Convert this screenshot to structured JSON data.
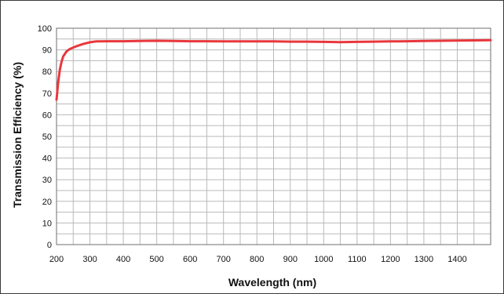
{
  "chart_data": {
    "type": "line",
    "title": "",
    "xlabel": "Wavelength (nm)",
    "ylabel": "Transmission Efficiency (%)",
    "xlim": [
      200,
      1500
    ],
    "ylim": [
      0,
      100
    ],
    "x_ticks": [
      200,
      300,
      400,
      500,
      600,
      700,
      800,
      900,
      1000,
      1100,
      1200,
      1300,
      1400
    ],
    "y_ticks": [
      0,
      10,
      20,
      30,
      40,
      50,
      60,
      70,
      80,
      90,
      100
    ],
    "x_grid_step": 50,
    "y_grid_step": 5,
    "grid": true,
    "legend": "none",
    "series": [
      {
        "color": "#e8383d",
        "points": [
          [
            200,
            67
          ],
          [
            205,
            75
          ],
          [
            210,
            81
          ],
          [
            215,
            84.5
          ],
          [
            220,
            87
          ],
          [
            230,
            89.3
          ],
          [
            240,
            90.4
          ],
          [
            260,
            91.7
          ],
          [
            280,
            92.7
          ],
          [
            300,
            93.5
          ],
          [
            320,
            93.9
          ],
          [
            350,
            94.0
          ],
          [
            400,
            94.0
          ],
          [
            450,
            94.1
          ],
          [
            500,
            94.2
          ],
          [
            550,
            94.1
          ],
          [
            600,
            94.0
          ],
          [
            650,
            94.0
          ],
          [
            700,
            93.9
          ],
          [
            750,
            93.9
          ],
          [
            800,
            93.9
          ],
          [
            850,
            93.9
          ],
          [
            900,
            93.8
          ],
          [
            950,
            93.8
          ],
          [
            1000,
            93.7
          ],
          [
            1050,
            93.6
          ],
          [
            1100,
            93.7
          ],
          [
            1150,
            93.8
          ],
          [
            1200,
            93.9
          ],
          [
            1250,
            94.0
          ],
          [
            1300,
            94.1
          ],
          [
            1350,
            94.2
          ],
          [
            1400,
            94.3
          ],
          [
            1450,
            94.4
          ],
          [
            1500,
            94.5
          ]
        ]
      }
    ]
  }
}
